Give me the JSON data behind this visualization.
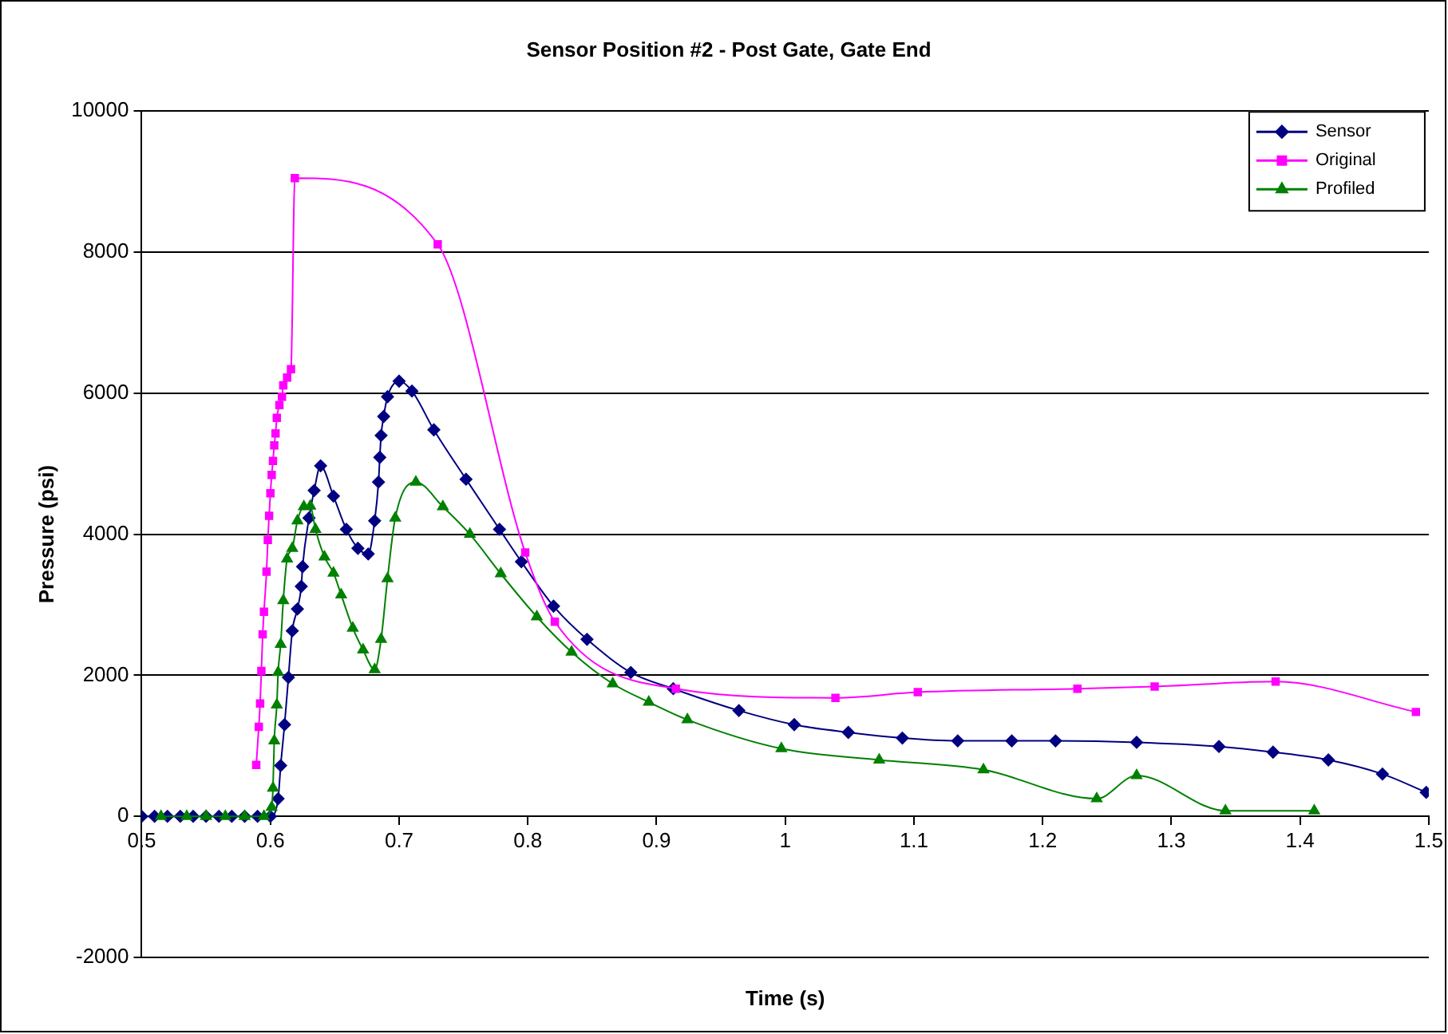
{
  "chart_data": {
    "type": "line",
    "title": "Sensor Position #2 - Post Gate, Gate End",
    "xlabel": "Time (s)",
    "ylabel": "Pressure (psi)",
    "xlim": [
      0.5,
      1.5
    ],
    "xticks": [
      0.5,
      0.6,
      0.7,
      0.8,
      0.9,
      1,
      1.1,
      1.2,
      1.3,
      1.4,
      1.5
    ],
    "ylim": [
      -2000,
      10000
    ],
    "yticks": [
      -2000,
      0,
      2000,
      4000,
      6000,
      8000,
      10000
    ],
    "grid": "y",
    "legend": "top right",
    "line_style": "solid",
    "series": [
      {
        "name": "Sensor",
        "color": "#000080",
        "marker": "diamond",
        "x": [
          0.5,
          0.51,
          0.52,
          0.53,
          0.54,
          0.55,
          0.56,
          0.57,
          0.58,
          0.59,
          0.6,
          0.606,
          0.608,
          0.611,
          0.614,
          0.617,
          0.621,
          0.624,
          0.625,
          0.63,
          0.634,
          0.639,
          0.649,
          0.659,
          0.668,
          0.676,
          0.681,
          0.684,
          0.685,
          0.686,
          0.688,
          0.691,
          0.7,
          0.71,
          0.727,
          0.752,
          0.778,
          0.795,
          0.82,
          0.846,
          0.88,
          0.913,
          0.964,
          1.007,
          1.049,
          1.091,
          1.134,
          1.176,
          1.21,
          1.273,
          1.337,
          1.379,
          1.422,
          1.464,
          1.498
        ],
        "values": [
          0,
          0,
          0,
          0,
          0,
          0,
          0,
          0,
          0,
          0,
          0,
          250,
          720,
          1300,
          1970,
          2630,
          2940,
          3260,
          3540,
          4230,
          4620,
          4970,
          4540,
          4070,
          3800,
          3720,
          4190,
          4740,
          5090,
          5400,
          5670,
          5950,
          6170,
          6030,
          5480,
          4780,
          4070,
          3610,
          2980,
          2510,
          2040,
          1810,
          1500,
          1300,
          1190,
          1110,
          1070,
          1070,
          1070,
          1050,
          990,
          910,
          800,
          600,
          340
        ]
      },
      {
        "name": "Original",
        "color": "#ff00ff",
        "marker": "square",
        "x": [
          0.589,
          0.591,
          0.592,
          0.593,
          0.594,
          0.595,
          0.597,
          0.598,
          0.599,
          0.6,
          0.601,
          0.602,
          0.603,
          0.604,
          0.605,
          0.607,
          0.609,
          0.61,
          0.613,
          0.616,
          0.619,
          0.73,
          0.798,
          0.821,
          0.915,
          1.039,
          1.103,
          1.227,
          1.287,
          1.381,
          1.49
        ],
        "values": [
          730,
          1270,
          1600,
          2060,
          2580,
          2900,
          3470,
          3920,
          4260,
          4580,
          4840,
          5040,
          5260,
          5430,
          5650,
          5830,
          5950,
          6110,
          6220,
          6340,
          9050,
          8110,
          3740,
          2760,
          1810,
          1680,
          1760,
          1810,
          1840,
          1910,
          1480
        ]
      },
      {
        "name": "Profiled",
        "color": "#008000",
        "marker": "triangle",
        "x": [
          0.515,
          0.535,
          0.55,
          0.565,
          0.58,
          0.595,
          0.601,
          0.602,
          0.603,
          0.605,
          0.606,
          0.608,
          0.61,
          0.613,
          0.617,
          0.621,
          0.626,
          0.631,
          0.635,
          0.642,
          0.649,
          0.655,
          0.664,
          0.672,
          0.681,
          0.686,
          0.691,
          0.697,
          0.713,
          0.734,
          0.755,
          0.779,
          0.807,
          0.834,
          0.866,
          0.894,
          0.924,
          0.997,
          1.073,
          1.154,
          1.242,
          1.273,
          1.342,
          1.411
        ],
        "values": [
          0,
          0,
          0,
          0,
          0,
          0,
          130,
          400,
          1070,
          1580,
          2040,
          2440,
          3060,
          3650,
          3800,
          4190,
          4390,
          4400,
          4070,
          3680,
          3450,
          3140,
          2670,
          2360,
          2080,
          2510,
          3370,
          4230,
          4740,
          4390,
          4000,
          3440,
          2830,
          2330,
          1880,
          1620,
          1370,
          960,
          800,
          660,
          250,
          580,
          80,
          80
        ]
      }
    ]
  }
}
